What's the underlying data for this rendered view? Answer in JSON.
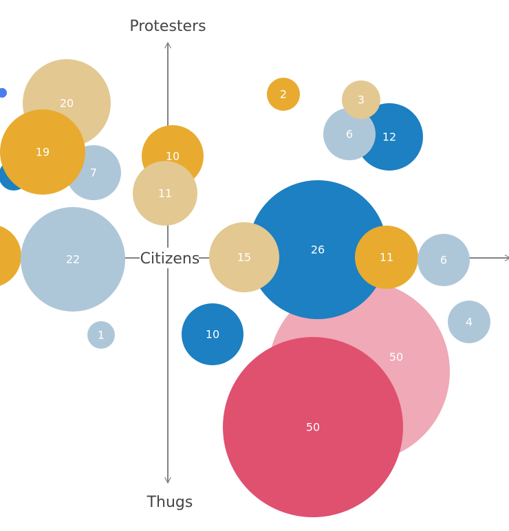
{
  "chart_data": {
    "type": "bubble",
    "axis_labels": {
      "top": "Protesters",
      "bottom": "Thugs",
      "center": "Citizens"
    },
    "colors": {
      "dark_blue": "#1c80c2",
      "light_blue": "#aec7d8",
      "gold": "#e8ab2f",
      "tan": "#e3c892",
      "pink": "#efa9b7",
      "red": "#e0506f",
      "marker_blue": "#4a7df0"
    },
    "bubbles": [
      {
        "value": 20,
        "label": "20",
        "color": "tan"
      },
      {
        "value": 19,
        "label": "19",
        "color": "gold"
      },
      {
        "value": 7,
        "label": "7",
        "color": "light_blue"
      },
      {
        "value": 10,
        "label": "10",
        "color": "gold"
      },
      {
        "value": 11,
        "label": "11",
        "color": "tan"
      },
      {
        "value": 22,
        "label": "22",
        "color": "light_blue"
      },
      {
        "value": 1,
        "label": "1",
        "color": "light_blue"
      },
      {
        "value": 2,
        "label": "2",
        "color": "gold"
      },
      {
        "value": 3,
        "label": "3",
        "color": "tan"
      },
      {
        "value": 6,
        "label": "6",
        "color": "light_blue"
      },
      {
        "value": 12,
        "label": "12",
        "color": "dark_blue"
      },
      {
        "value": 15,
        "label": "15",
        "color": "tan"
      },
      {
        "value": 26,
        "label": "26",
        "color": "dark_blue"
      },
      {
        "value": 11,
        "label": "11",
        "color": "gold"
      },
      {
        "value": 6,
        "label": "6",
        "color": "light_blue"
      },
      {
        "value": 4,
        "label": "4",
        "color": "light_blue"
      },
      {
        "value": 10,
        "label": "10",
        "color": "dark_blue"
      },
      {
        "value": 50,
        "label": "50",
        "color": "pink"
      },
      {
        "value": 50,
        "label": "50",
        "color": "red"
      }
    ],
    "unlabeled_bubbles": [
      {
        "color": "dark_blue"
      },
      {
        "color": "gold"
      },
      {
        "color": "marker_blue"
      }
    ]
  }
}
